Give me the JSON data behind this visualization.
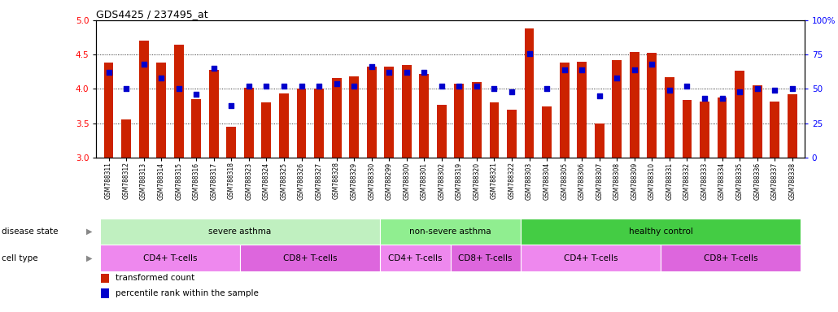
{
  "title": "GDS4425 / 237495_at",
  "samples": [
    "GSM788311",
    "GSM788312",
    "GSM788313",
    "GSM788314",
    "GSM788315",
    "GSM788316",
    "GSM788317",
    "GSM788318",
    "GSM788323",
    "GSM788324",
    "GSM788325",
    "GSM788326",
    "GSM788327",
    "GSM788328",
    "GSM788329",
    "GSM788330",
    "GSM788299",
    "GSM788300",
    "GSM788301",
    "GSM788302",
    "GSM788319",
    "GSM788320",
    "GSM788321",
    "GSM788322",
    "GSM788303",
    "GSM788304",
    "GSM788305",
    "GSM788306",
    "GSM788307",
    "GSM788308",
    "GSM788309",
    "GSM788310",
    "GSM788331",
    "GSM788332",
    "GSM788333",
    "GSM788334",
    "GSM788335",
    "GSM788336",
    "GSM788337",
    "GSM788338"
  ],
  "red_values": [
    4.38,
    3.56,
    4.7,
    4.38,
    4.65,
    3.85,
    4.28,
    3.45,
    4.02,
    3.8,
    3.94,
    4.01,
    4.0,
    4.16,
    4.18,
    4.33,
    4.33,
    4.35,
    4.22,
    3.77,
    4.08,
    4.1,
    3.8,
    3.7,
    4.88,
    3.74,
    4.38,
    4.4,
    3.5,
    4.42,
    4.54,
    4.53,
    4.17,
    3.84,
    3.82,
    3.87,
    4.26,
    4.05,
    3.81,
    3.92
  ],
  "blue_values": [
    62,
    50,
    68,
    58,
    50,
    46,
    65,
    38,
    52,
    52,
    52,
    52,
    52,
    54,
    52,
    66,
    62,
    62,
    62,
    52,
    52,
    52,
    50,
    48,
    76,
    50,
    64,
    64,
    45,
    58,
    64,
    68,
    49,
    52,
    43,
    43,
    48,
    50,
    49,
    50
  ],
  "disease_state_groups": [
    {
      "label": "severe asthma",
      "start": 0,
      "end": 15,
      "color": "#c0f0c0"
    },
    {
      "label": "non-severe asthma",
      "start": 16,
      "end": 23,
      "color": "#90ee90"
    },
    {
      "label": "healthy control",
      "start": 24,
      "end": 39,
      "color": "#44cc44"
    }
  ],
  "cell_type_groups": [
    {
      "label": "CD4+ T-cells",
      "start": 0,
      "end": 7,
      "color": "#ee88ee"
    },
    {
      "label": "CD8+ T-cells",
      "start": 8,
      "end": 15,
      "color": "#dd66dd"
    },
    {
      "label": "CD4+ T-cells",
      "start": 16,
      "end": 19,
      "color": "#ee88ee"
    },
    {
      "label": "CD8+ T-cells",
      "start": 20,
      "end": 23,
      "color": "#dd66dd"
    },
    {
      "label": "CD4+ T-cells",
      "start": 24,
      "end": 31,
      "color": "#ee88ee"
    },
    {
      "label": "CD8+ T-cells",
      "start": 32,
      "end": 39,
      "color": "#dd66dd"
    }
  ],
  "ylim_left": [
    3.0,
    5.0
  ],
  "ylim_right": [
    0,
    100
  ],
  "yticks_left": [
    3.0,
    3.5,
    4.0,
    4.5,
    5.0
  ],
  "yticks_right": [
    0,
    25,
    50,
    75,
    100
  ],
  "bar_color": "#cc2200",
  "dot_color": "#0000cc",
  "bg_color": "#ffffff",
  "label_disease": "disease state",
  "label_cell": "cell type",
  "legend": [
    "transformed count",
    "percentile rank within the sample"
  ]
}
